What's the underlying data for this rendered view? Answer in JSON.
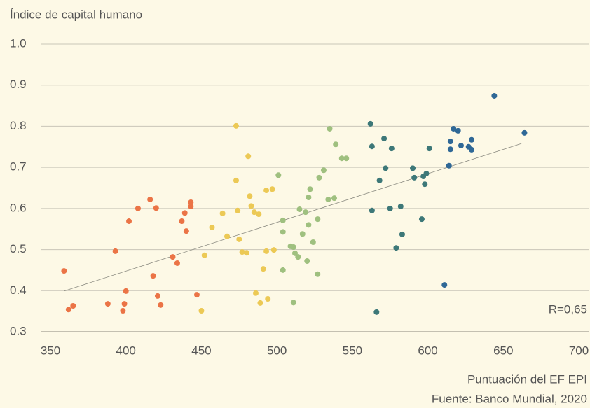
{
  "chart_data": {
    "type": "scatter",
    "y_label": "Índice de capital humano",
    "x_label": "Puntuación del EF EPI",
    "source": "Fuente: Banco Mundial, 2020",
    "annotation": "R=0,65",
    "xlim": [
      350,
      700
    ],
    "xticks": [
      350,
      400,
      450,
      500,
      550,
      600,
      650,
      700
    ],
    "ylim": [
      0.3,
      1.0
    ],
    "yticks": [
      0.3,
      0.4,
      0.5,
      0.6,
      0.7,
      0.8,
      0.9,
      {
        "value": 1.0,
        "label": "1.0"
      }
    ],
    "grid": true,
    "trendline": {
      "color": "#8a8a80",
      "x": [
        359,
        662
      ],
      "y": [
        0.399,
        0.758
      ]
    },
    "series": [
      {
        "color": "#eb7446",
        "x": [
          359,
          362,
          365,
          388,
          393,
          399,
          398,
          400,
          402,
          408,
          416,
          420,
          418,
          421,
          423,
          431,
          434,
          437,
          439,
          440,
          443,
          443,
          447
        ],
        "y": [
          0.448,
          0.354,
          0.363,
          0.368,
          0.496,
          0.368,
          0.351,
          0.399,
          0.569,
          0.6,
          0.622,
          0.601,
          0.436,
          0.387,
          0.365,
          0.482,
          0.467,
          0.569,
          0.589,
          0.545,
          0.615,
          0.605,
          0.39
        ]
      },
      {
        "color": "#ecc955",
        "x": [
          473,
          481,
          473,
          457,
          452,
          450,
          464,
          467,
          474,
          475,
          477,
          480,
          482,
          483,
          485,
          488,
          486,
          489,
          491,
          493,
          493,
          497,
          494,
          498
        ],
        "y": [
          0.801,
          0.727,
          0.668,
          0.554,
          0.486,
          0.351,
          0.588,
          0.532,
          0.595,
          0.525,
          0.494,
          0.492,
          0.63,
          0.606,
          0.591,
          0.586,
          0.394,
          0.37,
          0.453,
          0.496,
          0.644,
          0.647,
          0.38,
          0.499
        ]
      },
      {
        "color": "#9fc07f",
        "x": [
          501,
          504,
          504,
          504,
          509,
          511,
          511,
          512,
          514,
          515,
          517,
          519,
          520,
          521,
          521,
          522,
          524,
          527,
          527,
          528,
          531,
          534,
          535,
          538,
          539,
          543,
          546
        ],
        "y": [
          0.681,
          0.543,
          0.571,
          0.45,
          0.508,
          0.371,
          0.506,
          0.491,
          0.482,
          0.598,
          0.538,
          0.591,
          0.472,
          0.56,
          0.627,
          0.647,
          0.518,
          0.574,
          0.44,
          0.675,
          0.693,
          0.622,
          0.794,
          0.625,
          0.756,
          0.722,
          0.722
        ]
      },
      {
        "color": "#3d7878",
        "x": [
          562,
          563,
          563,
          566,
          568,
          571,
          572,
          575,
          576,
          579,
          582,
          583,
          590,
          591,
          596,
          597,
          598,
          599,
          601
        ],
        "y": [
          0.806,
          0.751,
          0.595,
          0.348,
          0.668,
          0.77,
          0.698,
          0.6,
          0.746,
          0.504,
          0.605,
          0.537,
          0.698,
          0.675,
          0.574,
          0.678,
          0.659,
          0.685,
          0.746
        ]
      },
      {
        "color": "#2f6896",
        "x": [
          611,
          614,
          615,
          615,
          617,
          620,
          622,
          627,
          629,
          629,
          644,
          664
        ],
        "y": [
          0.414,
          0.704,
          0.744,
          0.763,
          0.794,
          0.789,
          0.753,
          0.75,
          0.767,
          0.743,
          0.874,
          0.784
        ]
      }
    ]
  }
}
